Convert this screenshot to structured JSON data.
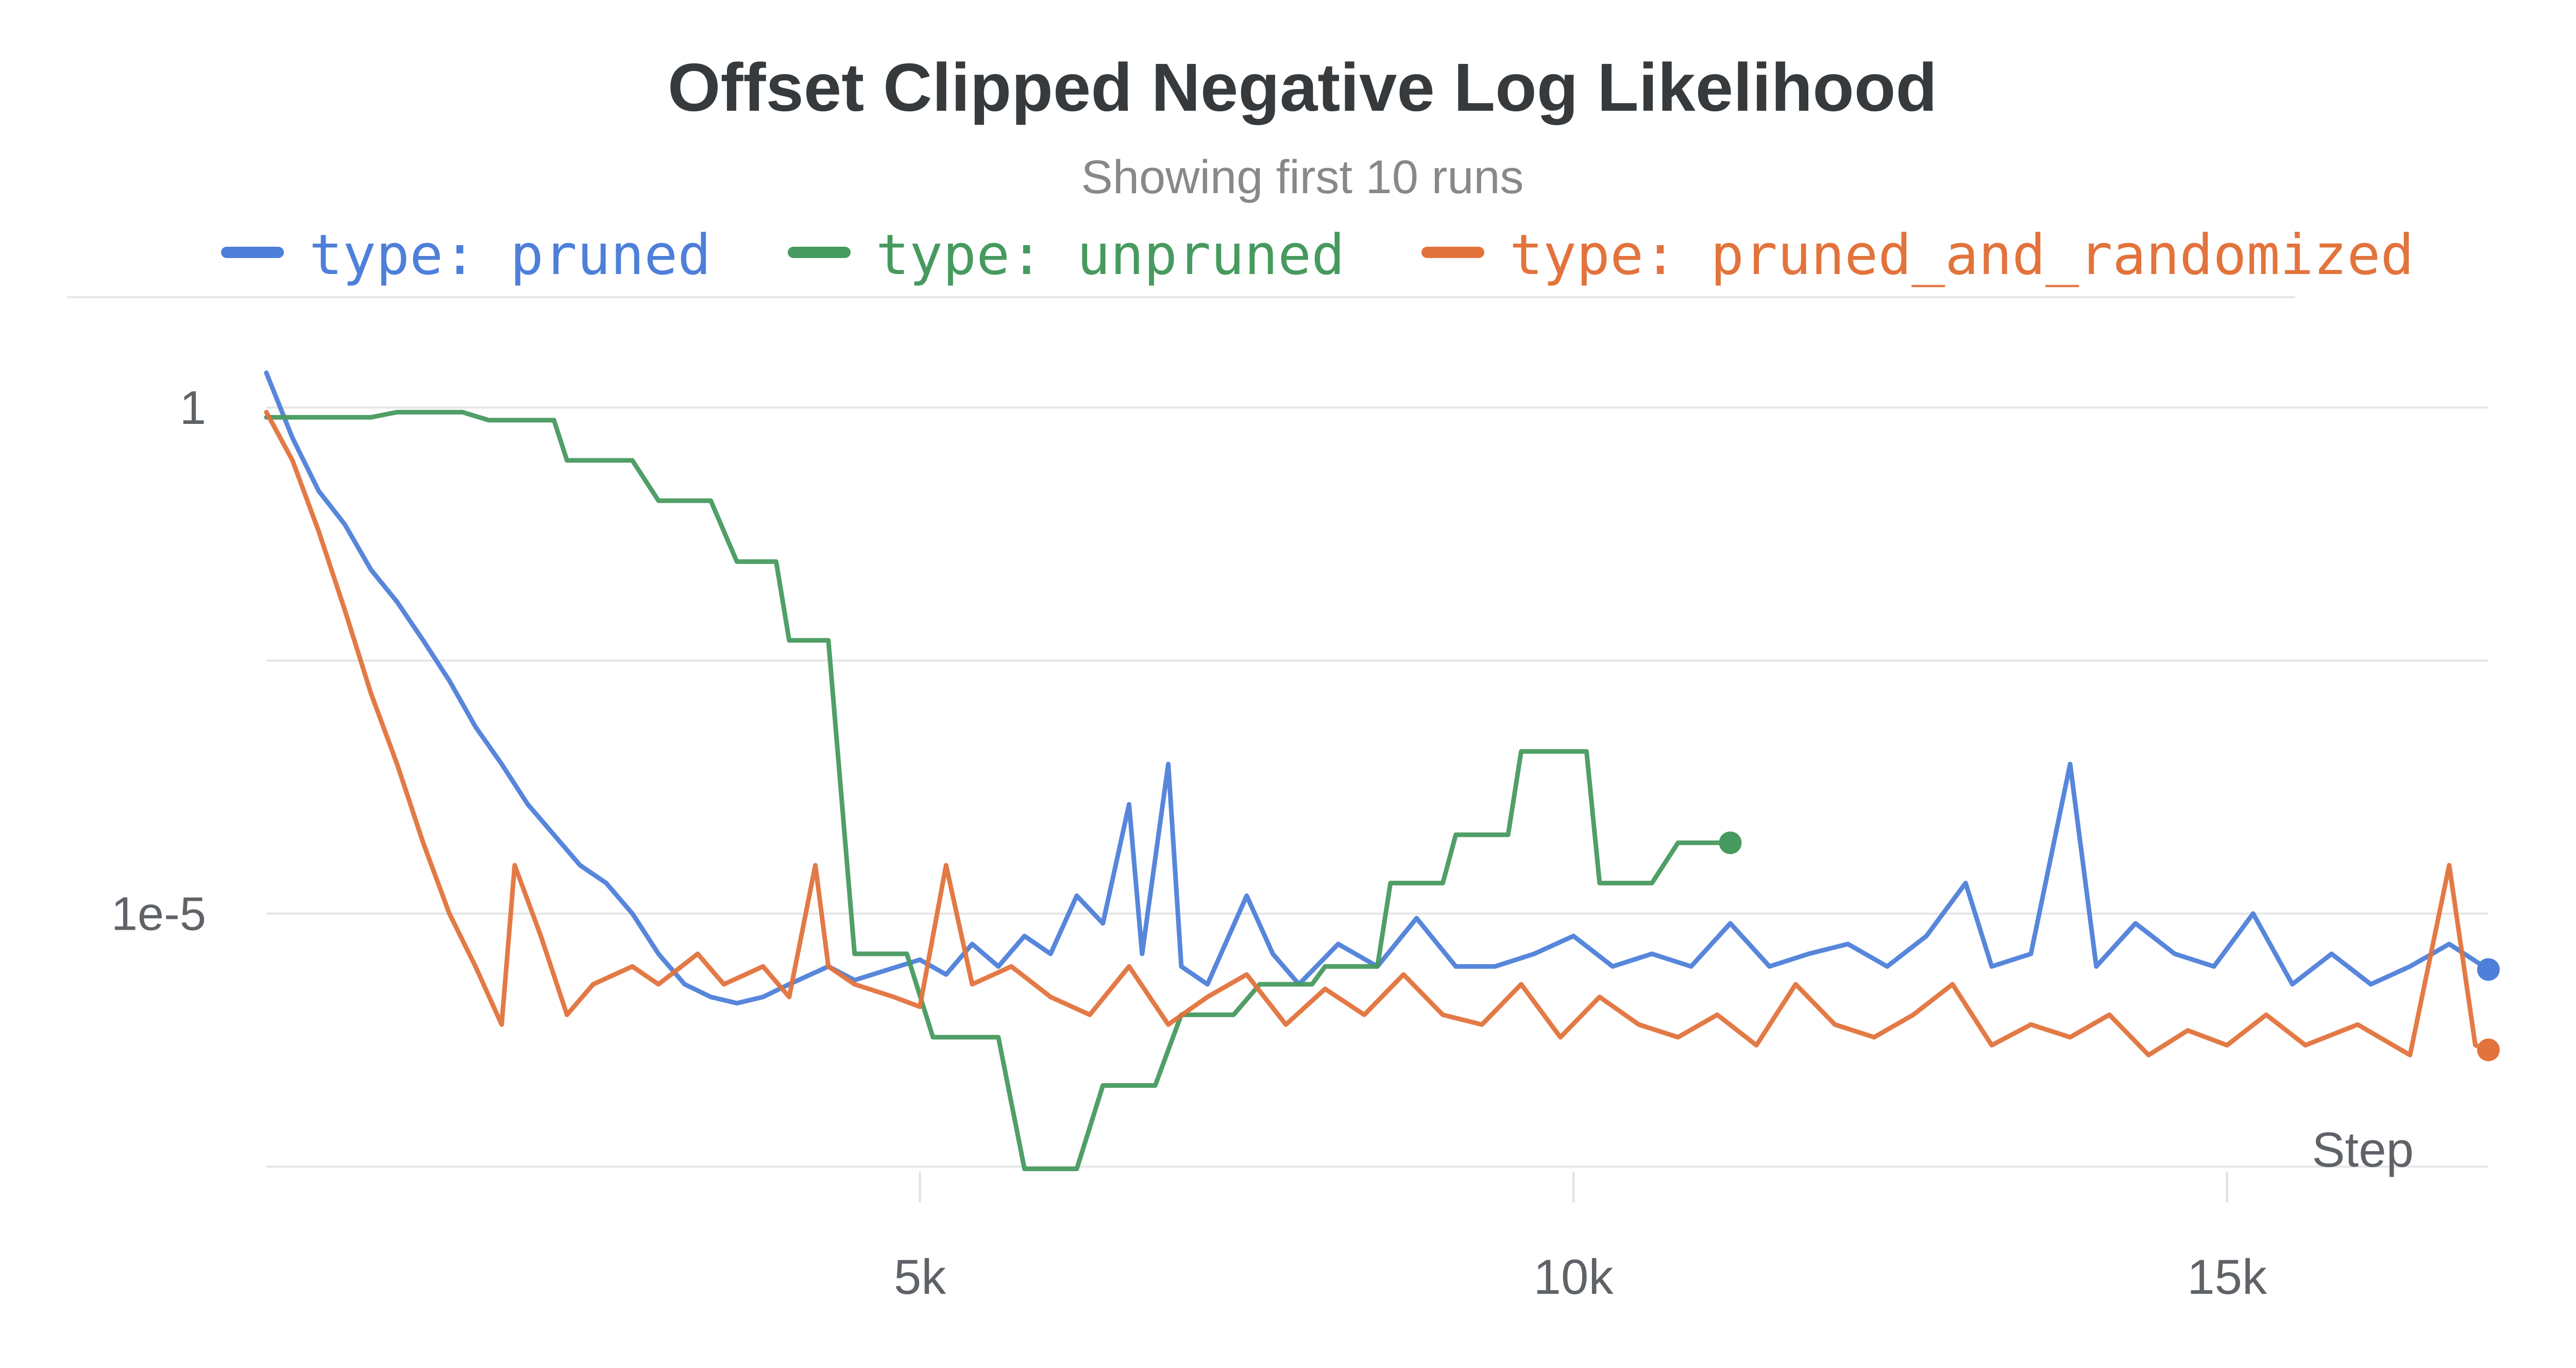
{
  "chart_data": {
    "type": "line",
    "title": "Offset Clipped Negative Log Likelihood",
    "subtitle": "Showing first 10 runs",
    "xlabel": "Step",
    "ylabel": "",
    "x_ticks": [
      {
        "value": 5000,
        "label": "5k"
      },
      {
        "value": 10000,
        "label": "10k"
      },
      {
        "value": 15000,
        "label": "15k"
      }
    ],
    "y_ticks": [
      {
        "value": 1,
        "label": "1"
      },
      {
        "value": 1e-05,
        "label": "1e-5"
      }
    ],
    "xlim": [
      0,
      17000
    ],
    "ylim": [
      3.16e-08,
      3.16
    ],
    "y_scale": "log",
    "grid": true,
    "legend_position": "top",
    "series": [
      {
        "name": "type: pruned",
        "color": "#4e7fd9",
        "points": [
          [
            0,
            2.2
          ],
          [
            200,
            0.5
          ],
          [
            400,
            0.15
          ],
          [
            600,
            0.07
          ],
          [
            800,
            0.025
          ],
          [
            1000,
            0.012
          ],
          [
            1200,
            0.005
          ],
          [
            1400,
            0.002
          ],
          [
            1600,
            0.0007
          ],
          [
            1800,
            0.0003
          ],
          [
            2000,
            0.00012
          ],
          [
            2200,
            6e-05
          ],
          [
            2400,
            3e-05
          ],
          [
            2600,
            2e-05
          ],
          [
            2800,
            1e-05
          ],
          [
            3000,
            4e-06
          ],
          [
            3200,
            2e-06
          ],
          [
            3400,
            1.5e-06
          ],
          [
            3600,
            1.3e-06
          ],
          [
            3800,
            1.5e-06
          ],
          [
            4000,
            2e-06
          ],
          [
            4300,
            3e-06
          ],
          [
            4500,
            2.2e-06
          ],
          [
            5000,
            3.5e-06
          ],
          [
            5200,
            2.5e-06
          ],
          [
            5400,
            5e-06
          ],
          [
            5600,
            3e-06
          ],
          [
            5800,
            6e-06
          ],
          [
            6000,
            4e-06
          ],
          [
            6200,
            1.5e-05
          ],
          [
            6400,
            8e-06
          ],
          [
            6600,
            0.00012
          ],
          [
            6700,
            4e-06
          ],
          [
            6900,
            0.0003
          ],
          [
            7000,
            3e-06
          ],
          [
            7200,
            2e-06
          ],
          [
            7500,
            1.5e-05
          ],
          [
            7700,
            4e-06
          ],
          [
            7900,
            2e-06
          ],
          [
            8200,
            5e-06
          ],
          [
            8500,
            3e-06
          ],
          [
            8800,
            9e-06
          ],
          [
            9100,
            3e-06
          ],
          [
            9400,
            3e-06
          ],
          [
            9700,
            4e-06
          ],
          [
            10000,
            6e-06
          ],
          [
            10300,
            3e-06
          ],
          [
            10600,
            4e-06
          ],
          [
            10900,
            3e-06
          ],
          [
            11200,
            8e-06
          ],
          [
            11500,
            3e-06
          ],
          [
            11800,
            4e-06
          ],
          [
            12100,
            5e-06
          ],
          [
            12400,
            3e-06
          ],
          [
            12700,
            6e-06
          ],
          [
            13000,
            2e-05
          ],
          [
            13200,
            3e-06
          ],
          [
            13500,
            4e-06
          ],
          [
            13800,
            0.0003
          ],
          [
            14000,
            3e-06
          ],
          [
            14300,
            8e-06
          ],
          [
            14600,
            4e-06
          ],
          [
            14900,
            3e-06
          ],
          [
            15200,
            1e-05
          ],
          [
            15500,
            2e-06
          ],
          [
            15800,
            4e-06
          ],
          [
            16100,
            2e-06
          ],
          [
            16400,
            3e-06
          ],
          [
            16700,
            5e-06
          ],
          [
            17000,
            2.8e-06
          ]
        ]
      },
      {
        "name": "type: unpruned",
        "color": "#479a5f",
        "points": [
          [
            0,
            0.8
          ],
          [
            800,
            0.8
          ],
          [
            1000,
            0.9
          ],
          [
            1500,
            0.9
          ],
          [
            1700,
            0.75
          ],
          [
            2200,
            0.75
          ],
          [
            2300,
            0.3
          ],
          [
            2800,
            0.3
          ],
          [
            3000,
            0.12
          ],
          [
            3400,
            0.12
          ],
          [
            3600,
            0.03
          ],
          [
            3900,
            0.03
          ],
          [
            4000,
            0.005
          ],
          [
            4300,
            0.005
          ],
          [
            4500,
            4e-06
          ],
          [
            4900,
            4e-06
          ],
          [
            5100,
            6e-07
          ],
          [
            5600,
            6e-07
          ],
          [
            5800,
            3e-08
          ],
          [
            6200,
            3e-08
          ],
          [
            6400,
            2e-07
          ],
          [
            6800,
            2e-07
          ],
          [
            7000,
            1e-06
          ],
          [
            7400,
            1e-06
          ],
          [
            7600,
            2e-06
          ],
          [
            8000,
            2e-06
          ],
          [
            8100,
            3e-06
          ],
          [
            8500,
            3e-06
          ],
          [
            8600,
            2e-05
          ],
          [
            9000,
            2e-05
          ],
          [
            9100,
            6e-05
          ],
          [
            9500,
            6e-05
          ],
          [
            9600,
            0.0004
          ],
          [
            10100,
            0.0004
          ],
          [
            10200,
            2e-05
          ],
          [
            10600,
            2e-05
          ],
          [
            10800,
            5e-05
          ],
          [
            11200,
            5e-05
          ]
        ]
      },
      {
        "name": "type: pruned_and_randomized",
        "color": "#e2733c",
        "points": [
          [
            0,
            0.9
          ],
          [
            200,
            0.3
          ],
          [
            400,
            0.06
          ],
          [
            600,
            0.01
          ],
          [
            800,
            0.0015
          ],
          [
            1000,
            0.0003
          ],
          [
            1200,
            5e-05
          ],
          [
            1400,
            1e-05
          ],
          [
            1600,
            3e-06
          ],
          [
            1800,
            8e-07
          ],
          [
            1900,
            3e-05
          ],
          [
            2100,
            6e-06
          ],
          [
            2300,
            1e-06
          ],
          [
            2500,
            2e-06
          ],
          [
            2800,
            3e-06
          ],
          [
            3000,
            2e-06
          ],
          [
            3300,
            4e-06
          ],
          [
            3500,
            2e-06
          ],
          [
            3800,
            3e-06
          ],
          [
            4000,
            1.5e-06
          ],
          [
            4200,
            3e-05
          ],
          [
            4300,
            3e-06
          ],
          [
            4500,
            2e-06
          ],
          [
            4800,
            1.5e-06
          ],
          [
            5000,
            1.2e-06
          ],
          [
            5200,
            3e-05
          ],
          [
            5400,
            2e-06
          ],
          [
            5700,
            3e-06
          ],
          [
            6000,
            1.5e-06
          ],
          [
            6300,
            1e-06
          ],
          [
            6600,
            3e-06
          ],
          [
            6900,
            8e-07
          ],
          [
            7200,
            1.5e-06
          ],
          [
            7500,
            2.5e-06
          ],
          [
            7800,
            8e-07
          ],
          [
            8100,
            1.8e-06
          ],
          [
            8400,
            1e-06
          ],
          [
            8700,
            2.5e-06
          ],
          [
            9000,
            1e-06
          ],
          [
            9300,
            8e-07
          ],
          [
            9600,
            2e-06
          ],
          [
            9900,
            6e-07
          ],
          [
            10200,
            1.5e-06
          ],
          [
            10500,
            8e-07
          ],
          [
            10800,
            6e-07
          ],
          [
            11100,
            1e-06
          ],
          [
            11400,
            5e-07
          ],
          [
            11700,
            2e-06
          ],
          [
            12000,
            8e-07
          ],
          [
            12300,
            6e-07
          ],
          [
            12600,
            1e-06
          ],
          [
            12900,
            2e-06
          ],
          [
            13200,
            5e-07
          ],
          [
            13500,
            8e-07
          ],
          [
            13800,
            6e-07
          ],
          [
            14100,
            1e-06
          ],
          [
            14400,
            4e-07
          ],
          [
            14700,
            7e-07
          ],
          [
            15000,
            5e-07
          ],
          [
            15300,
            1e-06
          ],
          [
            15600,
            5e-07
          ],
          [
            16000,
            8e-07
          ],
          [
            16400,
            4e-07
          ],
          [
            16700,
            3e-05
          ],
          [
            16900,
            5e-07
          ],
          [
            17000,
            4.5e-07
          ]
        ]
      }
    ]
  }
}
